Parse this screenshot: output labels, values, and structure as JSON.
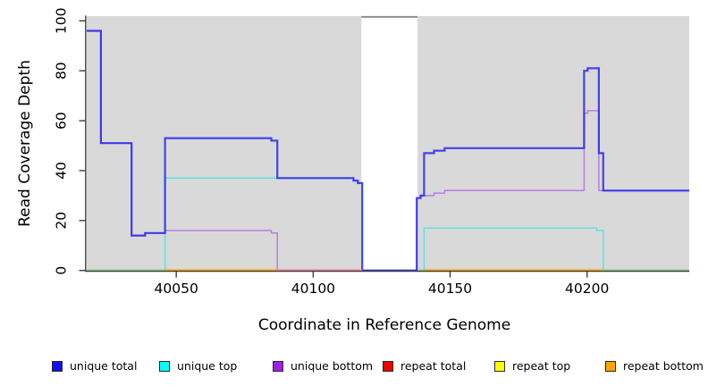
{
  "figure_title": "",
  "legend": {
    "items": [
      {
        "label": "unique total",
        "color": "#1010F0"
      },
      {
        "label": "unique top",
        "color": "#00FFFF"
      },
      {
        "label": "unique bottom",
        "color": "#9D20E8"
      },
      {
        "label": "repeat total",
        "color": "#EE0000"
      },
      {
        "label": "repeat top",
        "color": "#FFFF00"
      },
      {
        "label": "repeat bottom",
        "color": "#FFA500"
      }
    ]
  },
  "chart_data": {
    "type": "line",
    "title": "",
    "xlabel": "Coordinate in Reference Genome",
    "ylabel": "Read Coverage Depth",
    "xlim": [
      40017.3,
      40237.3
    ],
    "ylim": [
      0,
      101.9
    ],
    "x_ticks": [
      40050,
      40100,
      40150,
      40200
    ],
    "y_ticks": [
      0,
      20,
      40,
      60,
      80,
      100
    ],
    "grid": false,
    "legend_position": "bottom",
    "plot_bg_color": "#D9D9D9",
    "axis_color": "#3d3d3d",
    "no_data_gap": {
      "from": 40117.6,
      "to": 40138.1,
      "top_border_color": "#8E8E8E"
    },
    "series": [
      {
        "name": "unique total",
        "color": "#2828F0",
        "points": [
          [
            40017.3,
            96
          ],
          [
            40022.5,
            51
          ],
          [
            40033.7,
            14
          ],
          [
            40038.6,
            15
          ],
          [
            40045.9,
            53
          ],
          [
            40084.7,
            52
          ],
          [
            40086.9,
            37
          ],
          [
            40114.7,
            36
          ],
          [
            40116.3,
            35
          ],
          [
            40117.9,
            0
          ],
          [
            40137.8,
            29
          ],
          [
            40139.2,
            30
          ],
          [
            40140.5,
            47
          ],
          [
            40144.1,
            48
          ],
          [
            40148,
            49
          ],
          [
            40198.9,
            80
          ],
          [
            40200.2,
            81
          ],
          [
            40204.3,
            47
          ],
          [
            40205.9,
            32
          ],
          [
            40237.3,
            32
          ]
        ]
      },
      {
        "name": "unique top",
        "color": "#00E5EA",
        "points": [
          [
            40017.3,
            0
          ],
          [
            40045.9,
            37
          ],
          [
            40114.7,
            36
          ],
          [
            40116.3,
            35
          ],
          [
            40117.9,
            0
          ],
          [
            40140.5,
            17
          ],
          [
            40203.5,
            16
          ],
          [
            40205.9,
            0
          ],
          [
            40237.3,
            0
          ]
        ]
      },
      {
        "name": "unique bottom",
        "color": "#A020F0",
        "points": [
          [
            40017.3,
            96
          ],
          [
            40022.5,
            51
          ],
          [
            40033.7,
            14
          ],
          [
            40038.6,
            15
          ],
          [
            40045.9,
            16
          ],
          [
            40084.7,
            15
          ],
          [
            40086.9,
            0
          ],
          [
            40137.8,
            29
          ],
          [
            40139.2,
            30
          ],
          [
            40144.1,
            31
          ],
          [
            40148,
            32
          ],
          [
            40198.9,
            63
          ],
          [
            40200.2,
            64
          ],
          [
            40204.3,
            32
          ],
          [
            40237.3,
            32
          ]
        ]
      },
      {
        "name": "repeat total",
        "color": "#F00000",
        "points": [
          [
            40017.3,
            0
          ],
          [
            40237.3,
            0
          ]
        ]
      },
      {
        "name": "repeat top",
        "color": "#FFFF00",
        "points": [
          [
            40017.3,
            0
          ],
          [
            40237.3,
            0
          ]
        ]
      },
      {
        "name": "repeat bottom",
        "color": "#FFA500",
        "points": [
          [
            40017.3,
            0
          ],
          [
            40237.3,
            0
          ]
        ]
      }
    ],
    "zero_line_segments": [
      {
        "from": 40017.3,
        "to": 40045.9,
        "color": "#8CCE8C"
      },
      {
        "from": 40045.9,
        "to": 40086.9,
        "color": "#FFA500"
      },
      {
        "from": 40086.9,
        "to": 40117.9,
        "color": "#F28098"
      },
      {
        "from": 40138.1,
        "to": 40140.5,
        "color": "#8CCE8C"
      },
      {
        "from": 40140.5,
        "to": 40205.9,
        "color": "#FFA500"
      },
      {
        "from": 40205.9,
        "to": 40237.3,
        "color": "#8CCE8C"
      }
    ]
  }
}
